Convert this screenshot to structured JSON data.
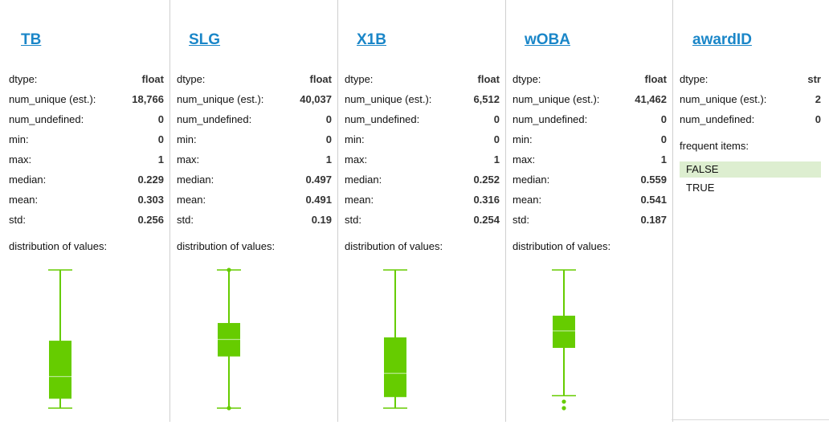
{
  "columns": [
    {
      "name": "TB",
      "dtype": "float",
      "num_unique": "18,766",
      "num_undefined": "0",
      "min": "0",
      "max": "1",
      "median": "0.229",
      "mean": "0.303",
      "std": "0.256",
      "boxplot": {
        "whisker_low": 0,
        "q1": 0.068,
        "median": 0.229,
        "q3": 0.488,
        "whisker_high": 1,
        "outliers": []
      }
    },
    {
      "name": "SLG",
      "dtype": "float",
      "num_unique": "40,037",
      "num_undefined": "0",
      "min": "0",
      "max": "1",
      "median": "0.497",
      "mean": "0.491",
      "std": "0.19",
      "boxplot": {
        "whisker_low": 0,
        "q1": 0.374,
        "median": 0.497,
        "q3": 0.616,
        "whisker_high": 1,
        "outliers": [
          0,
          1
        ]
      }
    },
    {
      "name": "X1B",
      "dtype": "float",
      "num_unique": "6,512",
      "num_undefined": "0",
      "min": "0",
      "max": "1",
      "median": "0.252",
      "mean": "0.316",
      "std": "0.254",
      "boxplot": {
        "whisker_low": 0,
        "q1": 0.08,
        "median": 0.252,
        "q3": 0.512,
        "whisker_high": 1,
        "outliers": []
      }
    },
    {
      "name": "wOBA",
      "dtype": "float",
      "num_unique": "41,462",
      "num_undefined": "0",
      "min": "0",
      "max": "1",
      "median": "0.559",
      "mean": "0.541",
      "std": "0.187",
      "boxplot": {
        "whisker_low": 0.09,
        "q1": 0.436,
        "median": 0.559,
        "q3": 0.669,
        "whisker_high": 1,
        "outliers": [
          0.047,
          0
        ]
      }
    },
    {
      "name": "awardID",
      "dtype": "str",
      "num_unique": "2",
      "num_undefined": "0",
      "frequent_label": "frequent items:",
      "frequent_items": [
        "FALSE",
        "TRUE"
      ]
    }
  ],
  "labels": {
    "dtype": "dtype:",
    "num_unique": "num_unique (est.):",
    "num_undefined": "num_undefined:",
    "min": "min:",
    "max": "max:",
    "median": "median:",
    "mean": "mean:",
    "std": "std:",
    "distribution": "distribution of values:"
  },
  "colors": {
    "accent": "#66cc00",
    "link": "#1a86c8",
    "highlight": "#ddeed0"
  }
}
